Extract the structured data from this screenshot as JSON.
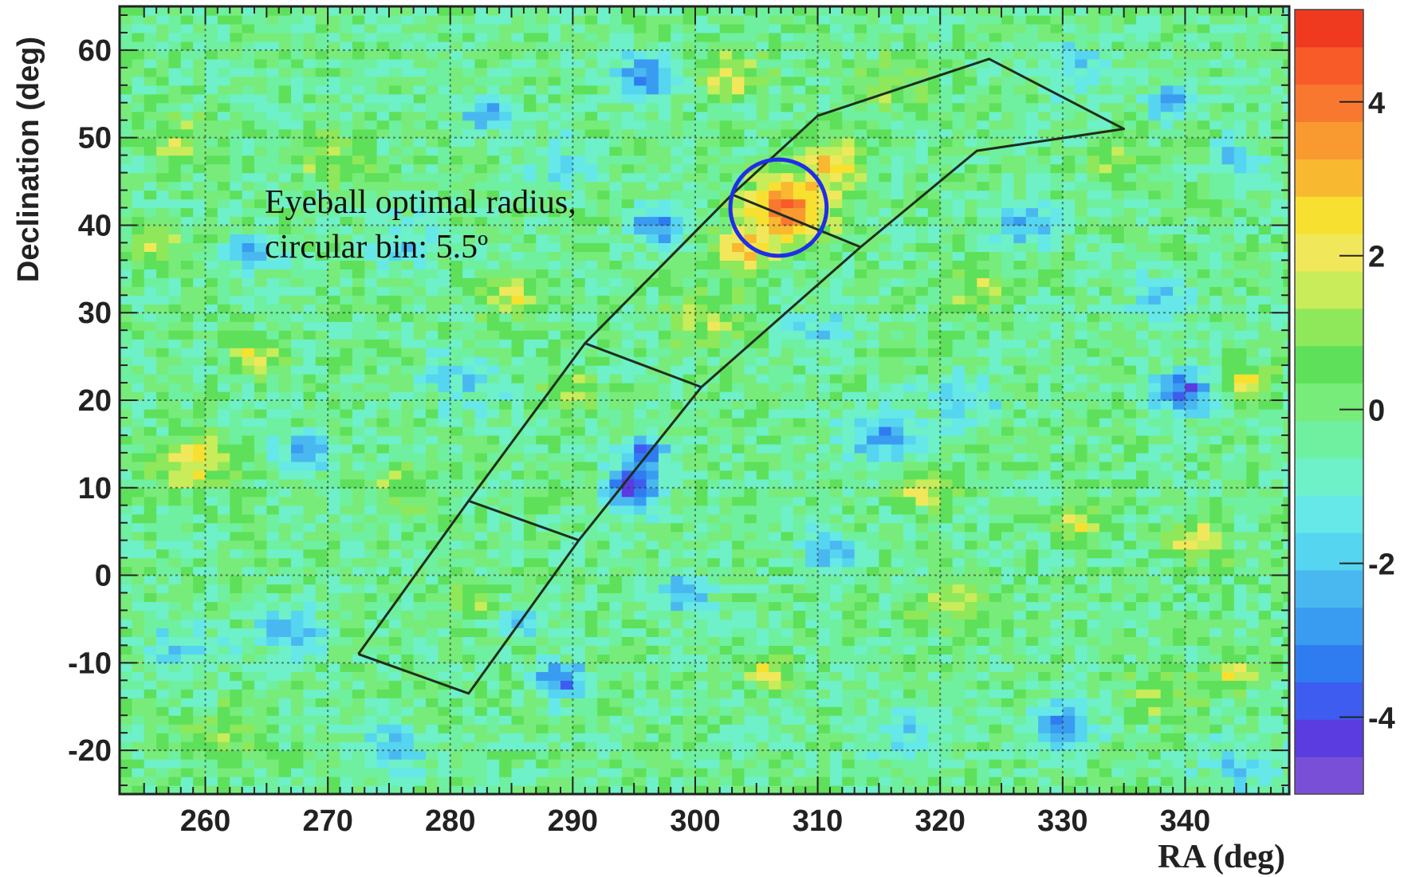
{
  "chart_data": {
    "type": "heatmap",
    "title": "",
    "xlabel": "RA (deg)",
    "ylabel": "Declination (deg)",
    "xlim": [
      253,
      348.5
    ],
    "ylim": [
      -25,
      65
    ],
    "xticks": [
      260,
      270,
      280,
      290,
      300,
      310,
      320,
      330,
      340
    ],
    "yticks": [
      60,
      50,
      40,
      30,
      20,
      10,
      0,
      -10,
      -20
    ],
    "grid": true,
    "colorbar": {
      "range": [
        -5,
        5.2
      ],
      "ticks": [
        4,
        2,
        0,
        -2,
        -4
      ],
      "colors": [
        "#7a4fd8",
        "#5a3ce0",
        "#3f5cf0",
        "#2f7cf0",
        "#3a9cf0",
        "#4ab8f0",
        "#55d5f0",
        "#66e8e8",
        "#6ef0c8",
        "#6ef0a0",
        "#78ec7a",
        "#5ee05a",
        "#8ee85a",
        "#c8ec5a",
        "#f0e85a",
        "#f8e030",
        "#f8b830",
        "#f89a30",
        "#f87830",
        "#f85a28",
        "#ef3a20"
      ]
    },
    "background_level": -0.2,
    "blobs": [
      {
        "ra": 307.5,
        "dec": 42,
        "level": 4.6,
        "radius": 3.5
      },
      {
        "ra": 304,
        "dec": 37,
        "level": 2.6,
        "radius": 2.5
      },
      {
        "ra": 311.5,
        "dec": 47,
        "level": 2.6,
        "radius": 2.5
      },
      {
        "ra": 301,
        "dec": 29,
        "level": 1.6,
        "radius": 3
      },
      {
        "ra": 295,
        "dec": 10,
        "level": -4.2,
        "radius": 2.2
      },
      {
        "ra": 296,
        "dec": 14,
        "level": -3.2,
        "radius": 1.8
      },
      {
        "ra": 289,
        "dec": -12,
        "level": -3.5,
        "radius": 2
      },
      {
        "ra": 340,
        "dec": 21,
        "level": -3.5,
        "radius": 2.5
      },
      {
        "ra": 297,
        "dec": 40,
        "level": -3,
        "radius": 2.2
      },
      {
        "ra": 330,
        "dec": -17,
        "level": -3,
        "radius": 2.5
      },
      {
        "ra": 311,
        "dec": 3,
        "level": -2.5,
        "radius": 2
      },
      {
        "ra": 315,
        "dec": 16,
        "level": -2.5,
        "radius": 3
      },
      {
        "ra": 268,
        "dec": 14,
        "level": -2.5,
        "radius": 2
      },
      {
        "ra": 264,
        "dec": 37,
        "level": -2.3,
        "radius": 2
      },
      {
        "ra": 283,
        "dec": 53,
        "level": -2.5,
        "radius": 2
      },
      {
        "ra": 296,
        "dec": 57,
        "level": -2.8,
        "radius": 2.5
      },
      {
        "ra": 267,
        "dec": -6,
        "level": -2.5,
        "radius": 2.5
      },
      {
        "ra": 299,
        "dec": -2,
        "level": -2.5,
        "radius": 2
      },
      {
        "ra": 286,
        "dec": -5,
        "level": -2.2,
        "radius": 1.8
      },
      {
        "ra": 327,
        "dec": 40,
        "level": -2.3,
        "radius": 2.5
      },
      {
        "ra": 338,
        "dec": 32,
        "level": -2,
        "radius": 2
      },
      {
        "ra": 339,
        "dec": 54,
        "level": -2.2,
        "radius": 2
      },
      {
        "ra": 344,
        "dec": 48,
        "level": -2,
        "radius": 1.8
      },
      {
        "ra": 259,
        "dec": 13,
        "level": 2.6,
        "radius": 3
      },
      {
        "ra": 264,
        "dec": 25,
        "level": 2,
        "radius": 2
      },
      {
        "ra": 256,
        "dec": 38,
        "level": 2.2,
        "radius": 2
      },
      {
        "ra": 303,
        "dec": 57,
        "level": 2.2,
        "radius": 2.5
      },
      {
        "ra": 285,
        "dec": 32,
        "level": 2,
        "radius": 2.5
      },
      {
        "ra": 290,
        "dec": 21,
        "level": 1.8,
        "radius": 2
      },
      {
        "ra": 331,
        "dec": 6,
        "level": 2.2,
        "radius": 2
      },
      {
        "ra": 341,
        "dec": 4,
        "level": 2.1,
        "radius": 2.5
      },
      {
        "ra": 306,
        "dec": -11,
        "level": 2.5,
        "radius": 2
      },
      {
        "ra": 345,
        "dec": 22,
        "level": 2.3,
        "radius": 2
      },
      {
        "ra": 319,
        "dec": 10,
        "level": 2.6,
        "radius": 2
      },
      {
        "ra": 323,
        "dec": 33,
        "level": 1.8,
        "radius": 2.5
      },
      {
        "ra": 334,
        "dec": 48,
        "level": 1.6,
        "radius": 2
      },
      {
        "ra": 270,
        "dec": 48,
        "level": 1.4,
        "radius": 3
      },
      {
        "ra": 258,
        "dec": 50,
        "level": 1.6,
        "radius": 2.5
      },
      {
        "ra": 276,
        "dec": 10,
        "level": 1.4,
        "radius": 2.5
      },
      {
        "ra": 282,
        "dec": -3,
        "level": 1.6,
        "radius": 2
      },
      {
        "ra": 262,
        "dec": -18,
        "level": 1.3,
        "radius": 3
      },
      {
        "ra": 321,
        "dec": -3,
        "level": 1.4,
        "radius": 3
      },
      {
        "ra": 338,
        "dec": -14,
        "level": 1.4,
        "radius": 3
      },
      {
        "ra": 344,
        "dec": -11,
        "level": 2,
        "radius": 2
      },
      {
        "ra": 316,
        "dec": 56,
        "level": 1.3,
        "radius": 3
      },
      {
        "ra": 281,
        "dec": 22,
        "level": -1.5,
        "radius": 3
      },
      {
        "ra": 318,
        "dec": -18,
        "level": -1.6,
        "radius": 3
      },
      {
        "ra": 310,
        "dec": 28,
        "level": -1.4,
        "radius": 2.5
      },
      {
        "ra": 322,
        "dec": 20,
        "level": -1.5,
        "radius": 3
      },
      {
        "ra": 275,
        "dec": -20,
        "level": -1.6,
        "radius": 3
      },
      {
        "ra": 345,
        "dec": -22,
        "level": -1.5,
        "radius": 3
      },
      {
        "ra": 258,
        "dec": -8,
        "level": -1.4,
        "radius": 3
      },
      {
        "ra": 276,
        "dec": 38,
        "level": -1.3,
        "radius": 3
      },
      {
        "ra": 289,
        "dec": 47,
        "level": -1.2,
        "radius": 3
      },
      {
        "ra": 331,
        "dec": 58,
        "level": -1.4,
        "radius": 3
      }
    ],
    "overlays": {
      "region_outline": [
        [
          272.5,
          -9
        ],
        [
          281.5,
          -13.5
        ],
        [
          290.5,
          4
        ],
        [
          300.5,
          21.5
        ],
        [
          313.5,
          37.5
        ],
        [
          323,
          48.5
        ],
        [
          335,
          51
        ],
        [
          324,
          59
        ],
        [
          310,
          52.5
        ],
        [
          303,
          43.5
        ],
        [
          291,
          26.5
        ],
        [
          281.5,
          8.5
        ],
        [
          272.5,
          -9
        ]
      ],
      "segment_dividers": [
        [
          [
            281.5,
            8.5
          ],
          [
            290.5,
            4
          ]
        ],
        [
          [
            291,
            26.5
          ],
          [
            300.5,
            21.5
          ]
        ],
        [
          [
            303,
            43.5
          ],
          [
            313.5,
            37.5
          ]
        ]
      ],
      "circle": {
        "ra": 306.8,
        "dec": 42,
        "radius_deg": 5.5,
        "color": "#1f2ee8"
      }
    },
    "annotation": {
      "lines": [
        "Eyeball optimal radius,",
        "circular bin: 5.5º"
      ]
    }
  }
}
